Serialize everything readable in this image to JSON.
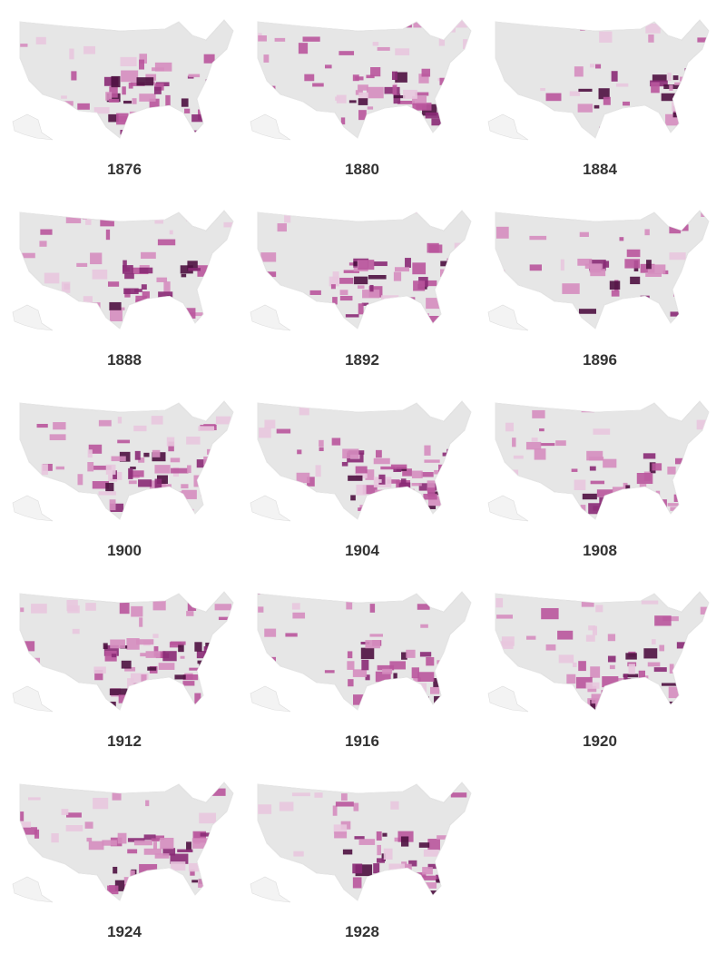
{
  "maps": [
    {
      "label": "1876"
    },
    {
      "label": "1880"
    },
    {
      "label": "1884"
    },
    {
      "label": "1888"
    },
    {
      "label": "1892"
    },
    {
      "label": "1896"
    },
    {
      "label": "1900"
    },
    {
      "label": "1904"
    },
    {
      "label": "1908"
    },
    {
      "label": "1912"
    },
    {
      "label": "1916"
    },
    {
      "label": "1920"
    },
    {
      "label": "1924"
    },
    {
      "label": "1928"
    }
  ]
}
